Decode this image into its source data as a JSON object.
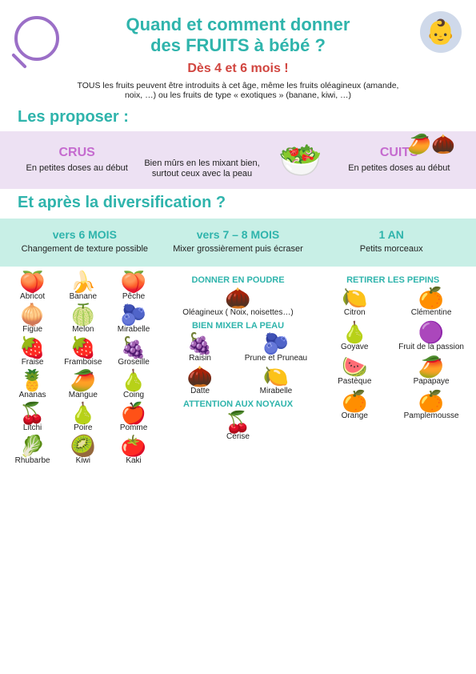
{
  "header": {
    "title_line1": "Quand et comment donner",
    "title_line2": "des FRUITS à bébé ?",
    "subtitle": "Dès 4 et 6 mois !",
    "intro": "TOUS les fruits peuvent être introduits à cet âge, même les fruits oléagineux (amande, noix, …) ou les fruits de type « exotiques » (banane, kiwi, …)",
    "baby_emoji": "👶",
    "exotic_emoji": "🥭🌰"
  },
  "propose": {
    "heading": "Les proposer :",
    "crus_title": "CRUS",
    "crus_text1": "En petites doses au début",
    "crus_text2": "Bien mûrs en les mixant bien, surtout ceux avec la peau",
    "bowl_emoji": "🥗",
    "cuits_title": "CUITS",
    "cuits_text": "En petites doses au début"
  },
  "diversification": {
    "heading": "Et après la diversification ?",
    "stages": [
      {
        "age": "vers 6 MOIS",
        "text": "Changement de texture possible"
      },
      {
        "age": "vers 7 – 8 MOIS",
        "text": "Mixer grossièrement puis écraser"
      },
      {
        "age": "1 AN",
        "text": "Petits morceaux"
      }
    ]
  },
  "left_fruits": [
    {
      "icon": "🍑",
      "label": "Abricot"
    },
    {
      "icon": "🍌",
      "label": "Banane"
    },
    {
      "icon": "🍑",
      "label": "Pêche"
    },
    {
      "icon": "🧅",
      "label": "Figue"
    },
    {
      "icon": "🍈",
      "label": "Melon"
    },
    {
      "icon": "🫐",
      "label": "Mirabelle"
    },
    {
      "icon": "🍓",
      "label": "Fraise"
    },
    {
      "icon": "🍓",
      "label": "Framboise"
    },
    {
      "icon": "🍇",
      "label": "Groseille"
    },
    {
      "icon": "🍍",
      "label": "Ananas"
    },
    {
      "icon": "🥭",
      "label": "Mangue"
    },
    {
      "icon": "🍐",
      "label": "Coing"
    },
    {
      "icon": "🍒",
      "label": "Litchi"
    },
    {
      "icon": "🍐",
      "label": "Poire"
    },
    {
      "icon": "🍎",
      "label": "Pomme"
    },
    {
      "icon": "🥬",
      "label": "Rhubarbe"
    },
    {
      "icon": "🥝",
      "label": "Kiwi"
    },
    {
      "icon": "🍅",
      "label": "Kaki"
    }
  ],
  "mid": {
    "poudre_h": "DONNER EN POUDRE",
    "poudre": [
      {
        "icon": "🌰",
        "label": "Oléagineux ( Noix, noisettes…)"
      }
    ],
    "peau_h": "BIEN MIXER LA PEAU",
    "peau": [
      {
        "icon": "🍇",
        "label": "Raisin"
      },
      {
        "icon": "🫐",
        "label": "Prune et Pruneau"
      }
    ],
    "dates": [
      {
        "icon": "🌰",
        "label": "Datte"
      },
      {
        "icon": "🍋",
        "label": "Mirabelle"
      }
    ],
    "noyaux_h": "ATTENTION AUX NOYAUX",
    "noyaux": [
      {
        "icon": "🍒",
        "label": "Cerise"
      }
    ]
  },
  "right": {
    "pepins_h": "RETIRER LES PEPINS",
    "fruits": [
      {
        "icon": "🍋",
        "label": "Citron"
      },
      {
        "icon": "🍊",
        "label": "Clémentine"
      },
      {
        "icon": "🍐",
        "label": "Goyave"
      },
      {
        "icon": "🟣",
        "label": "Fruit de la passion"
      },
      {
        "icon": "🍉",
        "label": "Pastèque"
      },
      {
        "icon": "🥭",
        "label": "Papapaye"
      },
      {
        "icon": "🍊",
        "label": "Orange"
      },
      {
        "icon": "🍊",
        "label": "Pamplemousse"
      }
    ]
  },
  "colors": {
    "teal": "#2fb4ac",
    "red": "#d1453f",
    "purple": "#c56bcf",
    "lilac_bg": "#ede1f3",
    "mint_bg": "#c8efe6"
  }
}
